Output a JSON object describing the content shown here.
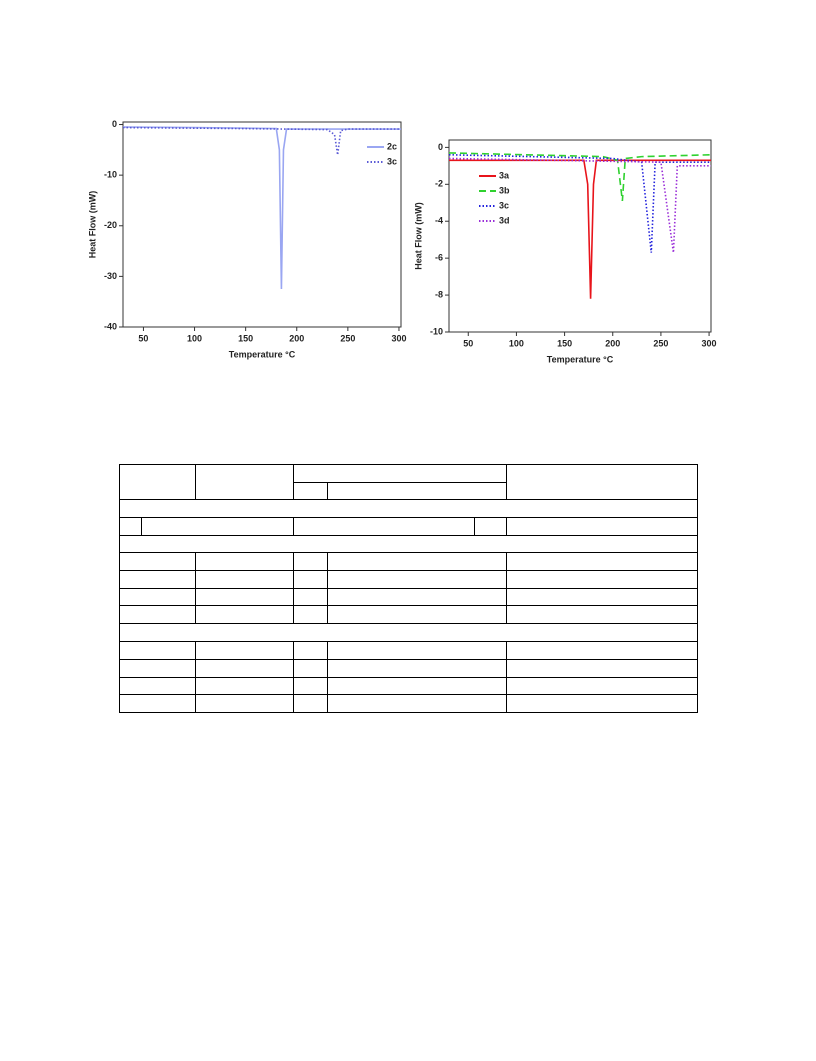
{
  "chart_data": [
    {
      "type": "line",
      "x_label": "Temperature °C",
      "y_label": "Heat Flow (mW)",
      "xlim": [
        30,
        302
      ],
      "xticks": [
        50,
        100,
        150,
        200,
        250,
        300
      ],
      "ylim": [
        -40,
        0.5
      ],
      "yticks": [
        0,
        -10,
        -20,
        -30,
        -40
      ],
      "legend": "upper right",
      "series": [
        {
          "name": "2c",
          "color": "#9aa6f2",
          "line_style": "solid",
          "x": [
            30,
            100,
            180,
            183,
            185,
            187,
            190,
            302
          ],
          "values": [
            -0.5,
            -0.6,
            -0.8,
            -5,
            -32.5,
            -5,
            -0.9,
            -0.9
          ]
        },
        {
          "name": "3c",
          "color": "#5b5bd6",
          "line_style": "dotted",
          "x": [
            30,
            150,
            230,
            237,
            240,
            243,
            250,
            302
          ],
          "values": [
            -0.6,
            -0.8,
            -1,
            -2,
            -6,
            -1.2,
            -0.9,
            -0.9
          ]
        }
      ]
    },
    {
      "type": "line",
      "x_label": "Temperature °C",
      "y_label": "Heat Flow (mW)",
      "xlim": [
        30,
        302
      ],
      "xticks": [
        50,
        100,
        150,
        200,
        250,
        300
      ],
      "ylim": [
        -10,
        0.4
      ],
      "yticks": [
        0,
        -2,
        -4,
        -6,
        -8,
        -10
      ],
      "legend": "upper left",
      "series": [
        {
          "name": "3a",
          "color": "#e8141b",
          "line_style": "solid",
          "x": [
            30,
            170,
            174,
            177,
            180,
            183,
            302
          ],
          "values": [
            -0.7,
            -0.7,
            -2,
            -8.2,
            -2,
            -0.7,
            -0.7
          ]
        },
        {
          "name": "3b",
          "color": "#2fd12f",
          "line_style": "dashed",
          "x": [
            30,
            190,
            205,
            210,
            213,
            230,
            302
          ],
          "values": [
            -0.3,
            -0.5,
            -0.7,
            -2.9,
            -0.6,
            -0.5,
            -0.4
          ]
        },
        {
          "name": "3c",
          "color": "#2222dd",
          "line_style": "dotted",
          "x": [
            30,
            200,
            230,
            240,
            244,
            302
          ],
          "values": [
            -0.4,
            -0.6,
            -0.8,
            -5.7,
            -0.8,
            -0.8
          ]
        },
        {
          "name": "3d",
          "color": "#9a2fd8",
          "line_style": "dotted",
          "x": [
            30,
            250,
            263,
            267,
            302
          ],
          "values": [
            -0.6,
            -0.8,
            -5.7,
            -1,
            -1
          ]
        }
      ]
    }
  ]
}
